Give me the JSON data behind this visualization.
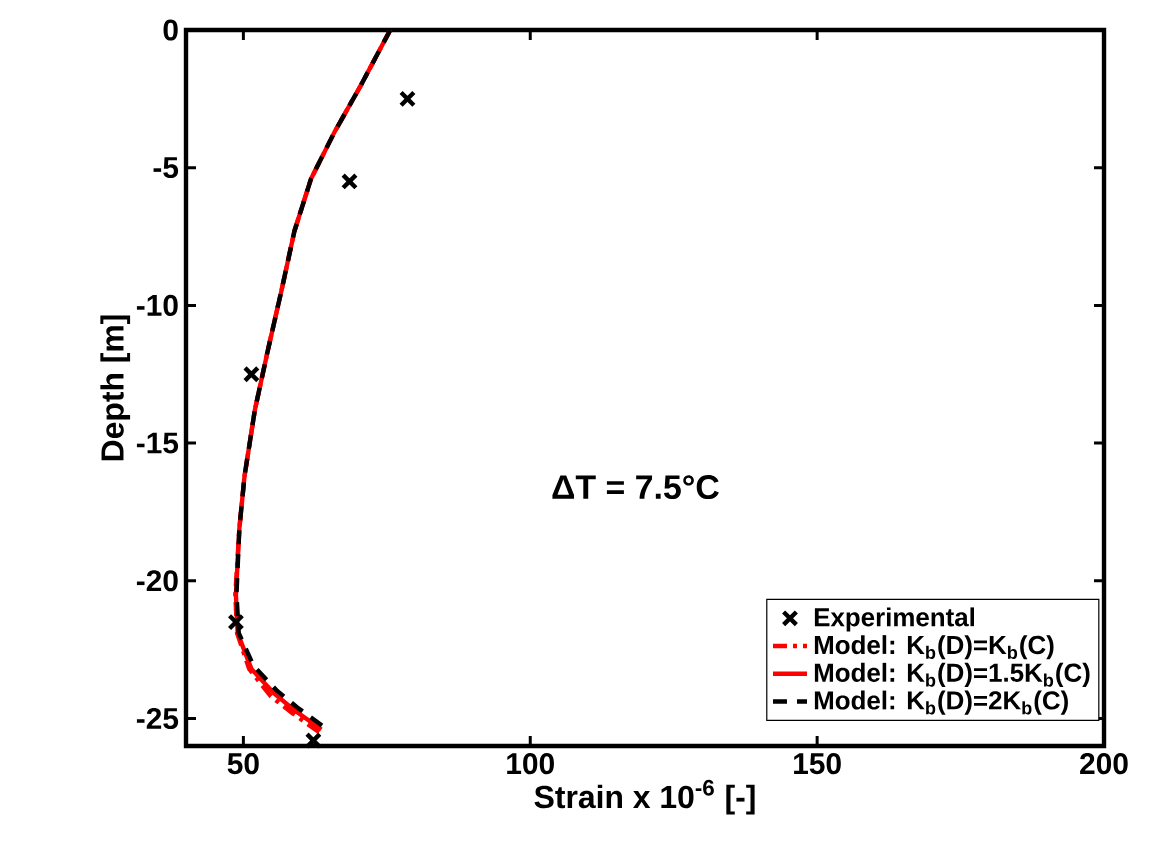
{
  "chart_data": {
    "type": "line",
    "xlabel": "Strain x 10$^{-6}$ [-]",
    "ylabel": "Depth [m]",
    "annotations": [
      "ΔT = 7.5°C"
    ],
    "xlim": [
      40,
      200
    ],
    "ylim": [
      -26,
      0
    ],
    "xticks": [
      50,
      100,
      150,
      200
    ],
    "yticks": [
      -25,
      -20,
      -15,
      -10,
      -5,
      0
    ],
    "grid": false,
    "legend": "bottom right",
    "series": [
      {
        "name": "Experimental",
        "type": "scatter",
        "marker": "cross",
        "color": "#000000",
        "x": [
          78.6,
          68.5,
          51.4,
          48.7,
          62.2
        ],
        "values": [
          -2.5,
          -5.5,
          -12.5,
          -21.5,
          -25.8
        ]
      },
      {
        "name": "Model: K$_{b}$(D)=K$_{b}$(C)",
        "line_style": "dashdot",
        "color": "#ff0000",
        "x": [
          75.6,
          70.5,
          65.9,
          61.8,
          58.9,
          56.6,
          54.3,
          52.0,
          50.2,
          49.3,
          48.6,
          48.9,
          51.0,
          54.8,
          58.5,
          63.2
        ],
        "values": [
          0,
          -2.0,
          -3.7,
          -5.4,
          -7.3,
          -9.5,
          -11.6,
          -13.8,
          -16.2,
          -18.1,
          -20.5,
          -21.9,
          -23.2,
          -24.2,
          -24.8,
          -25.5
        ]
      },
      {
        "name": "Model: K$_{b}$(D)=1.5K$_{b}$(C)",
        "line_style": "solid",
        "color": "#ff0000",
        "x": [
          75.6,
          70.5,
          65.9,
          61.8,
          58.9,
          56.6,
          54.3,
          52.0,
          50.2,
          49.3,
          48.7,
          49.0,
          51.4,
          55.4,
          58.9,
          63.6
        ],
        "values": [
          0,
          -2.0,
          -3.7,
          -5.4,
          -7.3,
          -9.5,
          -11.6,
          -13.8,
          -16.2,
          -18.1,
          -20.5,
          -21.9,
          -23.2,
          -24.1,
          -24.7,
          -25.4
        ]
      },
      {
        "name": "Model: K$_{b}$(D)=2K$_{b}$(C)",
        "line_style": "dashed",
        "color": "#000000",
        "x": [
          75.6,
          70.5,
          65.9,
          61.8,
          58.9,
          56.6,
          54.3,
          52.0,
          50.2,
          49.3,
          48.8,
          49.2,
          51.8,
          55.9,
          59.4,
          64.0
        ],
        "values": [
          0,
          -2.0,
          -3.7,
          -5.4,
          -7.3,
          -9.5,
          -11.6,
          -13.8,
          -16.2,
          -18.1,
          -20.5,
          -21.9,
          -23.1,
          -24.0,
          -24.6,
          -25.3
        ]
      }
    ]
  }
}
